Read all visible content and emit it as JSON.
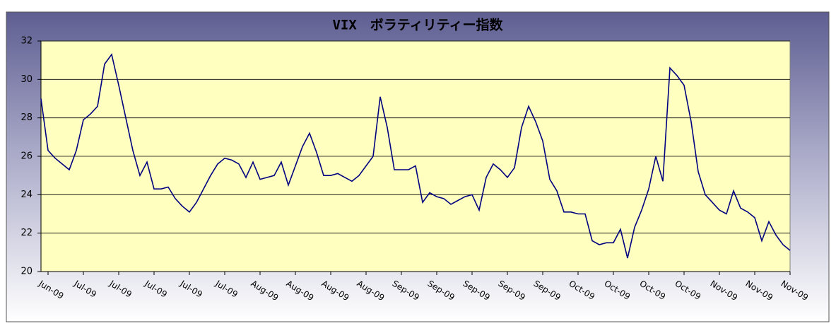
{
  "chart_data": {
    "type": "line",
    "title": "VIX　ボラティリティー指数",
    "categories": [
      null,
      "Jun-09",
      null,
      null,
      null,
      null,
      "Jul-09",
      null,
      null,
      null,
      null,
      "Jul-09",
      null,
      null,
      null,
      null,
      "Jul-09",
      null,
      null,
      null,
      null,
      "Jul-09",
      null,
      null,
      null,
      null,
      "Jul-09",
      null,
      null,
      null,
      null,
      "Aug-09",
      null,
      null,
      null,
      null,
      "Aug-09",
      null,
      null,
      null,
      null,
      "Aug-09",
      null,
      null,
      null,
      null,
      "Aug-09",
      null,
      null,
      null,
      null,
      "Sep-09",
      null,
      null,
      null,
      null,
      "Sep-09",
      null,
      null,
      null,
      null,
      "Sep-09",
      null,
      null,
      null,
      null,
      "Sep-09",
      null,
      null,
      null,
      null,
      "Sep-09",
      null,
      null,
      null,
      null,
      "Oct-09",
      null,
      null,
      null,
      null,
      "Oct-09",
      null,
      null,
      null,
      null,
      "Oct-09",
      null,
      null,
      null,
      null,
      "Oct-09",
      null,
      null,
      null,
      null,
      "Nov-09",
      null,
      null,
      null,
      null,
      "Nov-09",
      null,
      null,
      null,
      null,
      "Nov-09"
    ],
    "values": [
      29.0,
      26.3,
      25.9,
      25.6,
      25.3,
      26.3,
      27.9,
      28.2,
      28.6,
      30.8,
      31.3,
      29.7,
      28.0,
      26.3,
      25.0,
      25.7,
      24.3,
      24.3,
      24.4,
      23.8,
      23.4,
      23.1,
      23.6,
      24.3,
      25.0,
      25.6,
      25.9,
      25.8,
      25.6,
      24.9,
      25.7,
      24.8,
      24.9,
      25.0,
      25.7,
      24.5,
      25.5,
      26.5,
      27.2,
      26.2,
      25.0,
      25.0,
      25.1,
      24.9,
      24.7,
      25.0,
      25.5,
      26.0,
      29.1,
      27.5,
      25.3,
      25.3,
      25.3,
      25.5,
      23.6,
      24.1,
      23.9,
      23.8,
      23.5,
      23.7,
      23.9,
      24.0,
      23.2,
      24.9,
      25.6,
      25.3,
      24.9,
      25.4,
      27.5,
      28.6,
      27.8,
      26.8,
      24.8,
      24.2,
      23.1,
      23.1,
      23.0,
      23.0,
      21.6,
      21.4,
      21.5,
      21.5,
      22.2,
      20.7,
      22.3,
      23.2,
      24.3,
      26.0,
      24.7,
      30.6,
      30.2,
      29.7,
      27.8,
      25.2,
      24.0,
      23.6,
      23.2,
      23.0,
      24.2,
      23.3,
      23.1,
      22.8,
      21.6,
      22.6,
      21.9,
      21.4,
      21.1
    ],
    "color": "#000080",
    "ylim": [
      20,
      32
    ],
    "yticks": [
      20,
      22,
      24,
      26,
      28,
      30,
      32
    ],
    "grid": true
  }
}
